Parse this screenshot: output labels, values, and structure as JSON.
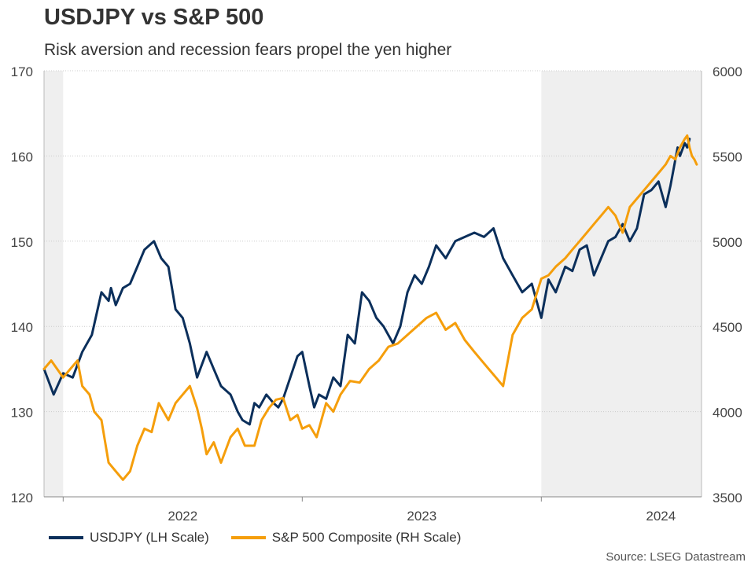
{
  "title": "USDJPY vs S&P 500",
  "subtitle": "Risk aversion and recession fears propel the yen higher",
  "source": "Source: LSEG Datastream",
  "colors": {
    "usdjpy": "#0b2f5b",
    "spx": "#f59e0b",
    "shade": "#efefef",
    "grid": "#cccccc"
  },
  "chart_data": {
    "type": "line",
    "title": "USDJPY vs S&P 500",
    "x_axis": {
      "range": [
        2021.92,
        2024.67
      ],
      "ticks": [
        2022.0,
        2023.0,
        2024.0
      ],
      "labels": [
        {
          "text": "2022",
          "x": 2022.5
        },
        {
          "text": "2023",
          "x": 2023.5
        },
        {
          "text": "2024",
          "x": 2024.5
        }
      ]
    },
    "y_left": {
      "label": "USDJPY (LH Scale)",
      "range": [
        120,
        170
      ],
      "ticks": [
        120,
        130,
        140,
        150,
        160,
        170
      ]
    },
    "y_right": {
      "label": "S&P 500 Composite (RH Scale)",
      "range": [
        3500,
        6000
      ],
      "ticks": [
        3500,
        4000,
        4500,
        5000,
        5500,
        6000
      ]
    },
    "shaded_periods": [
      [
        2021.92,
        2022.0
      ],
      [
        2024.0,
        2024.67
      ]
    ],
    "series": [
      {
        "name": "USDJPY (LH Scale)",
        "axis": "left",
        "x": [
          2021.92,
          2021.96,
          2022.0,
          2022.04,
          2022.08,
          2022.12,
          2022.16,
          2022.19,
          2022.2,
          2022.22,
          2022.25,
          2022.28,
          2022.31,
          2022.34,
          2022.38,
          2022.41,
          2022.44,
          2022.47,
          2022.5,
          2022.53,
          2022.56,
          2022.6,
          2022.63,
          2022.66,
          2022.7,
          2022.73,
          2022.75,
          2022.78,
          2022.8,
          2022.82,
          2022.85,
          2022.88,
          2022.9,
          2022.92,
          2022.95,
          2022.98,
          2023.0,
          2023.03,
          2023.05,
          2023.07,
          2023.1,
          2023.13,
          2023.16,
          2023.19,
          2023.22,
          2023.25,
          2023.28,
          2023.31,
          2023.34,
          2023.38,
          2023.41,
          2023.44,
          2023.47,
          2023.5,
          2023.53,
          2023.56,
          2023.6,
          2023.64,
          2023.68,
          2023.72,
          2023.76,
          2023.8,
          2023.84,
          2023.88,
          2023.92,
          2023.96,
          2024.0,
          2024.03,
          2024.06,
          2024.1,
          2024.13,
          2024.16,
          2024.19,
          2024.22,
          2024.25,
          2024.28,
          2024.31,
          2024.34,
          2024.37,
          2024.4,
          2024.43,
          2024.46,
          2024.49,
          2024.52,
          2024.54,
          2024.57,
          2024.58,
          2024.6,
          2024.61,
          2024.62
        ],
        "values": [
          135,
          132,
          134.5,
          134,
          137,
          139,
          144,
          143,
          144.5,
          142.5,
          144.5,
          145,
          147,
          149,
          150,
          148,
          147,
          142,
          141,
          138,
          134,
          137,
          135,
          133,
          132,
          130,
          129,
          128.5,
          131,
          130.5,
          132,
          131,
          130.5,
          131.5,
          134,
          136.5,
          137,
          133,
          130.5,
          132,
          131.5,
          134,
          133,
          139,
          138,
          144,
          143,
          141,
          140,
          138,
          140,
          144,
          146,
          145,
          147,
          149.5,
          148,
          150,
          150.5,
          151,
          150.5,
          151.5,
          148,
          146,
          144,
          145,
          141,
          145.5,
          144,
          147,
          146.5,
          149,
          149.5,
          146,
          148,
          150,
          150.5,
          152,
          150,
          151.5,
          155.5,
          156,
          157,
          154,
          156.5,
          161,
          160,
          161.5,
          161,
          162
        ]
      },
      {
        "name": "S&P 500 Composite (RH Scale)",
        "axis": "right",
        "x": [
          2021.92,
          2021.95,
          2022.0,
          2022.03,
          2022.06,
          2022.08,
          2022.11,
          2022.13,
          2022.16,
          2022.19,
          2022.22,
          2022.25,
          2022.28,
          2022.31,
          2022.34,
          2022.37,
          2022.4,
          2022.44,
          2022.47,
          2022.5,
          2022.53,
          2022.56,
          2022.58,
          2022.6,
          2022.63,
          2022.66,
          2022.7,
          2022.73,
          2022.76,
          2022.8,
          2022.83,
          2022.86,
          2022.89,
          2022.92,
          2022.95,
          2022.98,
          2023.0,
          2023.03,
          2023.06,
          2023.1,
          2023.13,
          2023.16,
          2023.2,
          2023.24,
          2023.28,
          2023.32,
          2023.36,
          2023.4,
          2023.44,
          2023.48,
          2023.52,
          2023.56,
          2023.6,
          2023.64,
          2023.68,
          2023.72,
          2023.75,
          2023.78,
          2023.81,
          2023.84,
          2023.88,
          2023.92,
          2023.96,
          2024.0,
          2024.03,
          2024.06,
          2024.1,
          2024.13,
          2024.16,
          2024.19,
          2024.22,
          2024.25,
          2024.28,
          2024.31,
          2024.34,
          2024.37,
          2024.4,
          2024.43,
          2024.46,
          2024.49,
          2024.52,
          2024.54,
          2024.56,
          2024.58,
          2024.6,
          2024.61,
          2024.62,
          2024.63,
          2024.64,
          2024.65
        ],
        "values": [
          4250,
          4300,
          4200,
          4250,
          4300,
          4150,
          4100,
          4000,
          3950,
          3700,
          3650,
          3600,
          3650,
          3800,
          3900,
          3880,
          4050,
          3950,
          4050,
          4100,
          4150,
          4020,
          3900,
          3750,
          3820,
          3700,
          3850,
          3900,
          3800,
          3800,
          3950,
          4020,
          4070,
          4080,
          3950,
          3980,
          3900,
          3920,
          3850,
          4050,
          4000,
          4100,
          4180,
          4170,
          4250,
          4300,
          4380,
          4400,
          4450,
          4500,
          4550,
          4580,
          4480,
          4520,
          4420,
          4350,
          4300,
          4250,
          4200,
          4150,
          4450,
          4550,
          4600,
          4780,
          4800,
          4850,
          4900,
          4950,
          5000,
          5050,
          5100,
          5150,
          5200,
          5150,
          5050,
          5200,
          5250,
          5300,
          5350,
          5400,
          5450,
          5500,
          5480,
          5550,
          5600,
          5620,
          5550,
          5500,
          5480,
          5450
        ]
      }
    ]
  },
  "legend": {
    "usdjpy_label": "USDJPY (LH Scale)",
    "spx_label": "S&P 500 Composite (RH Scale)"
  }
}
